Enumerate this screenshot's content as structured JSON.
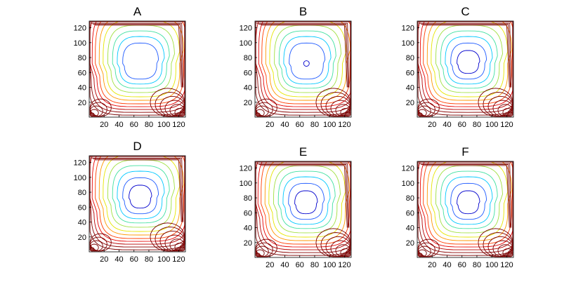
{
  "chart_data": [
    {
      "type": "contour",
      "title": "A",
      "xticks": [
        "20",
        "40",
        "60",
        "80",
        "100",
        "120"
      ],
      "yticks": [
        "20",
        "40",
        "60",
        "80",
        "100",
        "120"
      ],
      "xlim": [
        0,
        129
      ],
      "ylim": [
        0,
        129
      ],
      "vortex_center": [
        68,
        72
      ],
      "inner_levels": 1,
      "extra_core": false
    },
    {
      "type": "contour",
      "title": "B",
      "xticks": [
        "20",
        "40",
        "60",
        "80",
        "100",
        "120"
      ],
      "yticks": [
        "20",
        "40",
        "60",
        "80",
        "100",
        "120"
      ],
      "xlim": [
        0,
        129
      ],
      "ylim": [
        0,
        129
      ],
      "vortex_center": [
        69,
        72
      ],
      "inner_levels": 1,
      "extra_core": true
    },
    {
      "type": "contour",
      "title": "C",
      "xticks": [
        "20",
        "40",
        "60",
        "80",
        "100",
        "120"
      ],
      "yticks": [
        "20",
        "40",
        "60",
        "80",
        "100",
        "120"
      ],
      "xlim": [
        0,
        129
      ],
      "ylim": [
        0,
        129
      ],
      "vortex_center": [
        68,
        72
      ],
      "inner_levels": 2,
      "extra_core": false
    },
    {
      "type": "contour",
      "title": "D",
      "xticks": [
        "20",
        "40",
        "60",
        "80",
        "100",
        "120"
      ],
      "yticks": [
        "20",
        "40",
        "60",
        "80",
        "100",
        "120"
      ],
      "xlim": [
        0,
        129
      ],
      "ylim": [
        0,
        129
      ],
      "vortex_center": [
        68,
        72
      ],
      "inner_levels": 2,
      "extra_core": false
    },
    {
      "type": "contour",
      "title": "E",
      "xticks": [
        "20",
        "40",
        "60",
        "80",
        "100",
        "120"
      ],
      "yticks": [
        "20",
        "40",
        "60",
        "80",
        "100",
        "120"
      ],
      "xlim": [
        0,
        129
      ],
      "ylim": [
        0,
        129
      ],
      "vortex_center": [
        68,
        72
      ],
      "inner_levels": 2,
      "extra_core": false
    },
    {
      "type": "contour",
      "title": "F",
      "xticks": [
        "20",
        "40",
        "60",
        "80",
        "100",
        "120"
      ],
      "yticks": [
        "20",
        "40",
        "60",
        "80",
        "100",
        "120"
      ],
      "xlim": [
        0,
        129
      ],
      "ylim": [
        0,
        129
      ],
      "vortex_center": [
        68,
        72
      ],
      "inner_levels": 2,
      "extra_core": false
    }
  ],
  "colors": {
    "levels": [
      "#0000cd",
      "#1e5aff",
      "#00c8ff",
      "#40e0a0",
      "#a0e040",
      "#e6e600",
      "#ff9600",
      "#ff3c00",
      "#e60000",
      "#b40000",
      "#8b0000",
      "#780000",
      "#6a0000",
      "#5a0000"
    ],
    "corner": "#7a0000",
    "frame": "#000000"
  }
}
